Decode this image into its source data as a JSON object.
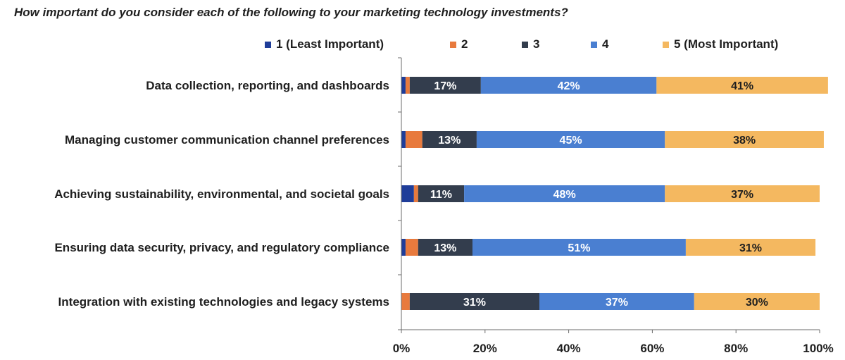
{
  "chart_data": {
    "type": "bar",
    "orientation": "horizontal",
    "stacked": true,
    "percent_stacked": true,
    "title": "How important do you consider each of the following to your marketing technology investments?",
    "categories": [
      "Data collection, reporting, and dashboards",
      "Managing customer communication channel preferences",
      "Achieving sustainability, environmental, and societal goals",
      "Ensuring data security, privacy, and regulatory compliance",
      "Integration with existing technologies and legacy systems"
    ],
    "series": [
      {
        "name": "1 (Least Important)",
        "color": "#1f3d99",
        "label_color": "#ffffff",
        "values": [
          1,
          1,
          3,
          1,
          0
        ]
      },
      {
        "name": "2",
        "color": "#e87a3d",
        "label_color": "#ffffff",
        "values": [
          1,
          4,
          1,
          3,
          2
        ]
      },
      {
        "name": "3",
        "color": "#333d4d",
        "label_color": "#ffffff",
        "values": [
          17,
          13,
          11,
          13,
          31
        ]
      },
      {
        "name": "4",
        "color": "#4a7fd1",
        "label_color": "#ffffff",
        "values": [
          42,
          45,
          48,
          51,
          37
        ]
      },
      {
        "name": "5 (Most Important)",
        "color": "#f4b860",
        "label_color": "#1f1f1f",
        "values": [
          41,
          38,
          37,
          31,
          30
        ]
      }
    ],
    "data_labels": [
      [
        "",
        "",
        "17%",
        "42%",
        "41%"
      ],
      [
        "",
        "",
        "13%",
        "45%",
        "38%"
      ],
      [
        "",
        "",
        "11%",
        "48%",
        "37%"
      ],
      [
        "",
        "",
        "13%",
        "51%",
        "31%"
      ],
      [
        "",
        "",
        "31%",
        "37%",
        "30%"
      ]
    ],
    "xlim": [
      0,
      100
    ],
    "xticks": [
      0,
      20,
      40,
      60,
      80,
      100
    ],
    "xtick_labels": [
      "0%",
      "20%",
      "40%",
      "60%",
      "80%",
      "100%"
    ],
    "grid": false,
    "legend_position": "top"
  }
}
